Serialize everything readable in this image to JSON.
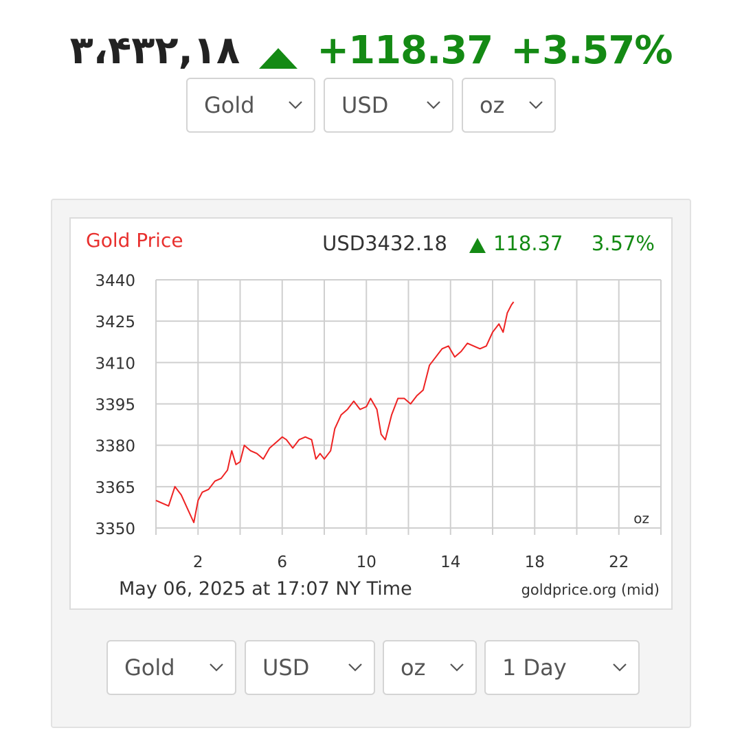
{
  "header": {
    "price": "٣،۴٣٢,١٨",
    "change": "+118.37",
    "change_pct": "+3.57%",
    "direction_icon": "triangle-up-icon",
    "up_color": "#148a14"
  },
  "top_selects": {
    "metal": "Gold",
    "currency": "USD",
    "unit": "oz"
  },
  "bottom_selects": {
    "metal": "Gold",
    "currency": "USD",
    "unit": "oz",
    "period": "1 Day"
  },
  "chart_data": {
    "type": "line",
    "title": "Gold Price",
    "title_color": "#e8302e",
    "price_label": "USD3432.18",
    "change": "118.37",
    "change_pct": "3.57%",
    "line_color": "#ee2222",
    "unit_label": "oz",
    "footer_time": "May 06, 2025 at 17:07 NY Time",
    "footer_source": "goldprice.org (mid)",
    "grid": true,
    "xlim": [
      0,
      24
    ],
    "ylim": [
      3350,
      3440
    ],
    "x_ticks": [
      2,
      6,
      10,
      14,
      18,
      22
    ],
    "y_ticks": [
      3350,
      3365,
      3380,
      3395,
      3410,
      3425,
      3440
    ],
    "series": [
      {
        "x": [
          0.0,
          0.3,
          0.6,
          0.9,
          1.2,
          1.5,
          1.8,
          2.0,
          2.2,
          2.5,
          2.8,
          3.1,
          3.4,
          3.6,
          3.8,
          4.0,
          4.2,
          4.5,
          4.8,
          5.1,
          5.4,
          5.7,
          6.0,
          6.2,
          6.5,
          6.8,
          7.1,
          7.4,
          7.6,
          7.8,
          8.0,
          8.3,
          8.5,
          8.8,
          9.1,
          9.4,
          9.7,
          10.0,
          10.2,
          10.5,
          10.7,
          10.9,
          11.2,
          11.5,
          11.8,
          12.1,
          12.4,
          12.7,
          13.0,
          13.3,
          13.6,
          13.9,
          14.2,
          14.5,
          14.8,
          15.1,
          15.4,
          15.7,
          16.0,
          16.3,
          16.5,
          16.7,
          16.9,
          17.0
        ],
        "y": [
          3360,
          3359,
          3358,
          3365,
          3362,
          3357,
          3352,
          3360,
          3363,
          3364,
          3367,
          3368,
          3371,
          3378,
          3373,
          3374,
          3380,
          3378,
          3377,
          3375,
          3379,
          3381,
          3383,
          3382,
          3379,
          3382,
          3383,
          3382,
          3375,
          3377,
          3375,
          3378,
          3386,
          3391,
          3393,
          3396,
          3393,
          3394,
          3397,
          3393,
          3384,
          3382,
          3391,
          3397,
          3397,
          3395,
          3398,
          3400,
          3409,
          3412,
          3415,
          3416,
          3412,
          3414,
          3417,
          3416,
          3415,
          3416,
          3421,
          3424,
          3421,
          3428,
          3431,
          3432
        ]
      }
    ]
  }
}
